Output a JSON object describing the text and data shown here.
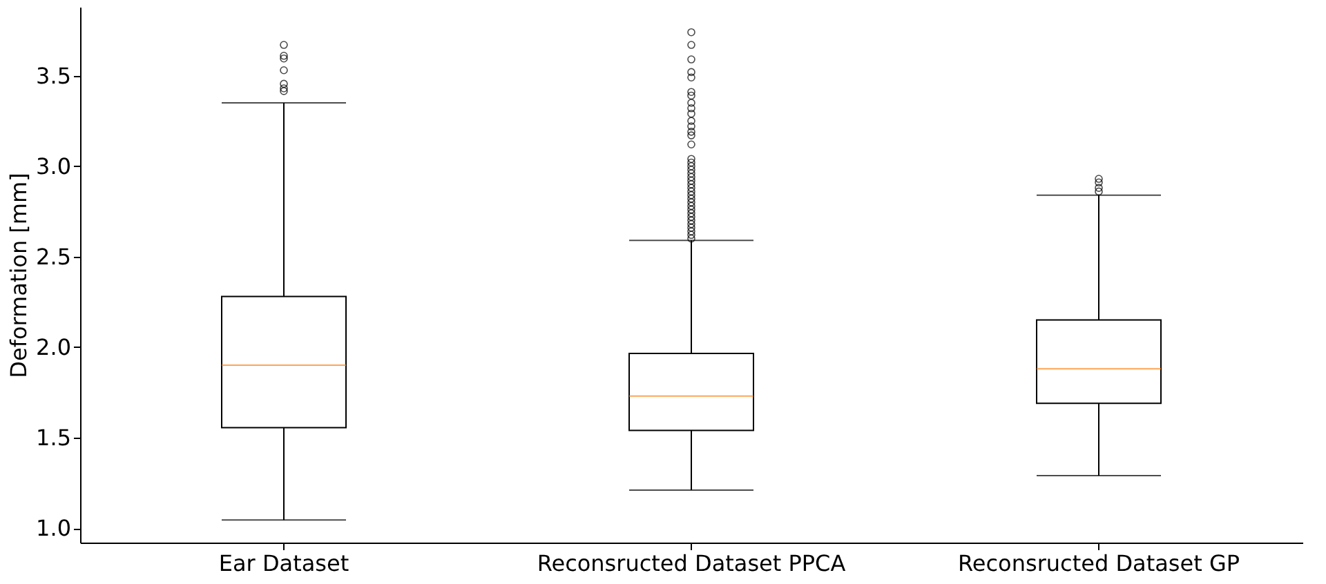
{
  "chart_data": {
    "type": "box",
    "ylabel": "Deformation [mm]",
    "categories": [
      "Ear Dataset",
      "Reconsructed Dataset PPCA",
      "Reconsructed Dataset GP"
    ],
    "ylim": [
      0.92,
      3.88
    ],
    "yticks": [
      {
        "value": 1.0,
        "label": "1.0"
      },
      {
        "value": 1.5,
        "label": "1.5"
      },
      {
        "value": 2.0,
        "label": "2.0"
      },
      {
        "value": 2.5,
        "label": "2.5"
      },
      {
        "value": 3.0,
        "label": "3.0"
      },
      {
        "value": 3.5,
        "label": "3.5"
      }
    ],
    "grid": false,
    "boxes": [
      {
        "low": 1.045,
        "q1": 1.555,
        "median": 1.9,
        "q3": 2.28,
        "high": 3.35,
        "outliers": [
          3.67,
          3.61,
          3.595,
          3.53,
          3.455,
          3.43,
          3.415
        ]
      },
      {
        "low": 1.21,
        "q1": 1.54,
        "median": 1.73,
        "q3": 1.965,
        "high": 2.59,
        "outliers": [
          3.74,
          3.67,
          3.59,
          3.52,
          3.49,
          3.41,
          3.39,
          3.35,
          3.32,
          3.29,
          3.25,
          3.22,
          3.19,
          3.17,
          3.12,
          3.04,
          3.02,
          3.0,
          2.98,
          2.96,
          2.94,
          2.92,
          2.9,
          2.88,
          2.86,
          2.84,
          2.82,
          2.8,
          2.78,
          2.76,
          2.74,
          2.72,
          2.7,
          2.68,
          2.66,
          2.64,
          2.62,
          2.6
        ]
      },
      {
        "low": 1.29,
        "q1": 1.69,
        "median": 1.88,
        "q3": 2.15,
        "high": 2.84,
        "outliers": [
          2.93,
          2.91,
          2.88,
          2.86
        ]
      }
    ]
  }
}
